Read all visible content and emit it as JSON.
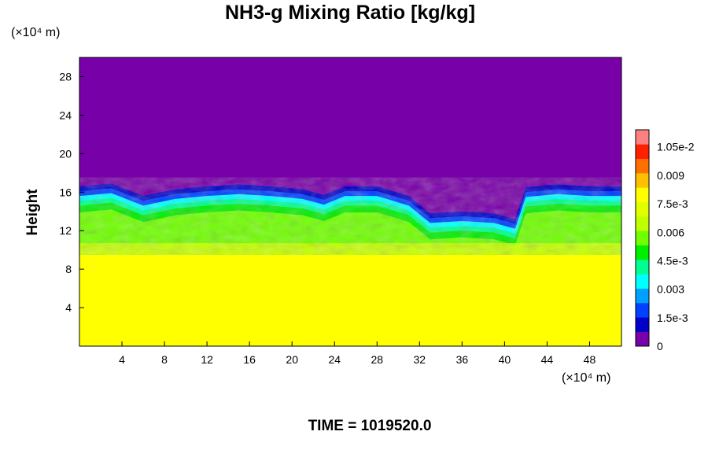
{
  "chart_data": {
    "type": "heatmap",
    "title": "NH3-g Mixing Ratio [kg/kg]",
    "ylabel": "Height",
    "xlabel": "",
    "x_unit": "(×10⁴ m)",
    "y_unit": "(×10⁴ m)",
    "xlim": [
      0,
      51
    ],
    "ylim": [
      0,
      30
    ],
    "x_ticks": [
      4,
      8,
      12,
      16,
      20,
      24,
      28,
      32,
      36,
      40,
      44,
      48
    ],
    "y_ticks": [
      4,
      8,
      12,
      16,
      20,
      24,
      28
    ],
    "colorbar": {
      "min": 0,
      "max": 0.0114,
      "labels": [
        "0",
        "1.5e-3",
        "0.003",
        "4.5e-3",
        "0.006",
        "7.5e-3",
        "0.009",
        "1.05e-2"
      ],
      "label_values": [
        0,
        0.0015,
        0.003,
        0.0045,
        0.006,
        0.0075,
        0.009,
        0.0105
      ],
      "colors": [
        "#7800a8",
        "#0000c8",
        "#0040ff",
        "#00a0ff",
        "#00ffff",
        "#00ff90",
        "#00ee00",
        "#70ff00",
        "#c0ff00",
        "#e0ff00",
        "#ffff00",
        "#ffc000",
        "#ff7000",
        "#ff2000",
        "#ff8080"
      ]
    },
    "fields": {
      "lower_layer_value": 0.0078,
      "lower_layer_top_height": 9.5,
      "mixed_layer_value": 0.006,
      "upper_layer_value": 0,
      "boundary_height": [
        [
          0,
          16.6
        ],
        [
          3,
          16.9
        ],
        [
          6,
          15.6
        ],
        [
          9,
          16.3
        ],
        [
          12,
          16.6
        ],
        [
          15,
          16.8
        ],
        [
          18,
          16.6
        ],
        [
          21,
          16.3
        ],
        [
          23,
          15.7
        ],
        [
          25,
          16.6
        ],
        [
          28,
          16.6
        ],
        [
          31,
          15.6
        ],
        [
          33,
          13.8
        ],
        [
          36,
          14.0
        ],
        [
          39,
          13.8
        ],
        [
          41,
          13.2
        ],
        [
          42,
          16.5
        ],
        [
          45,
          16.8
        ],
        [
          48,
          16.6
        ],
        [
          51,
          16.6
        ]
      ]
    }
  },
  "time_label": "TIME = 1019520.0"
}
